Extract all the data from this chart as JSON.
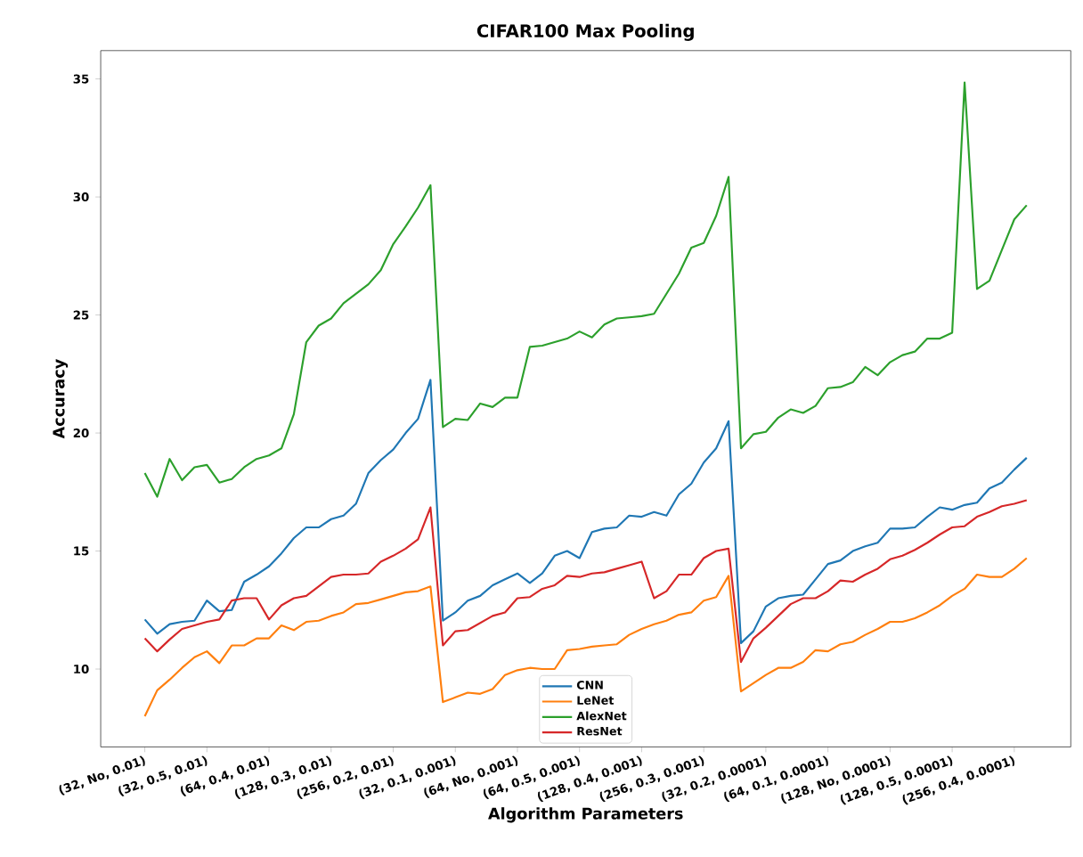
{
  "chart_data": {
    "type": "line",
    "title": "CIFAR100 Max Pooling",
    "xlabel": "Algorithm Parameters",
    "ylabel": "Accuracy",
    "categories": [
      "(32, No, 0.01)",
      null,
      null,
      null,
      null,
      "(32, 0.5, 0.01)",
      null,
      null,
      null,
      null,
      "(64, 0.4, 0.01)",
      null,
      null,
      null,
      null,
      "(128, 0.3, 0.01)",
      null,
      null,
      null,
      null,
      "(256, 0.2, 0.01)",
      null,
      null,
      null,
      null,
      "(32, 0.1, 0.001)",
      null,
      null,
      null,
      null,
      "(64, No, 0.001)",
      null,
      null,
      null,
      null,
      "(64, 0.5, 0.001)",
      null,
      null,
      null,
      null,
      "(128, 0.4, 0.001)",
      null,
      null,
      null,
      null,
      "(256, 0.3, 0.001)",
      null,
      null,
      null,
      null,
      "(32, 0.2, 0.0001)",
      null,
      null,
      null,
      null,
      "(64, 0.1, 0.0001)",
      null,
      null,
      null,
      null,
      "(128, No, 0.0001)",
      null,
      null,
      null,
      null,
      "(128, 0.5, 0.0001)",
      null,
      null,
      null,
      null,
      "(256, 0.4, 0.0001)",
      null
    ],
    "series": [
      {
        "name": "CNN",
        "color": "#1f77b4",
        "values": [
          12.1,
          11.5,
          11.9,
          12.0,
          12.05,
          12.9,
          12.45,
          12.5,
          13.7,
          14.0,
          14.35,
          14.9,
          15.55,
          16.0,
          16.0,
          16.35,
          16.5,
          17.0,
          18.3,
          18.85,
          19.3,
          20.0,
          20.6,
          22.25,
          12.05,
          12.4,
          12.9,
          13.1,
          13.55,
          13.8,
          14.05,
          13.65,
          14.05,
          14.8,
          15.0,
          14.7,
          15.8,
          15.95,
          16.0,
          16.5,
          16.45,
          16.65,
          16.5,
          17.4,
          17.85,
          18.75,
          19.35,
          20.5,
          11.1,
          11.6,
          12.65,
          13.0,
          13.1,
          13.15,
          13.8,
          14.45,
          14.6,
          15.0,
          15.2,
          15.35,
          15.95,
          15.95,
          16.0,
          16.45,
          16.85,
          16.75,
          16.95,
          17.05,
          17.65,
          17.9,
          18.45,
          18.95
        ]
      },
      {
        "name": "LeNet",
        "color": "#ff7f0e",
        "values": [
          8.0,
          9.1,
          9.55,
          10.05,
          10.5,
          10.75,
          10.25,
          11.0,
          11.0,
          11.3,
          11.3,
          11.85,
          11.65,
          12.0,
          12.05,
          12.25,
          12.4,
          12.75,
          12.8,
          12.95,
          13.1,
          13.25,
          13.3,
          13.5,
          8.6,
          8.8,
          9.0,
          8.95,
          9.15,
          9.75,
          9.95,
          10.05,
          10.0,
          10.0,
          10.8,
          10.85,
          10.95,
          11.0,
          11.05,
          11.45,
          11.7,
          11.9,
          12.05,
          12.3,
          12.4,
          12.9,
          13.05,
          13.95,
          9.05,
          9.4,
          9.75,
          10.05,
          10.05,
          10.3,
          10.8,
          10.75,
          11.05,
          11.15,
          11.45,
          11.7,
          12.0,
          12.0,
          12.15,
          12.4,
          12.7,
          13.1,
          13.4,
          14.0,
          13.9,
          13.9,
          14.25,
          14.7
        ]
      },
      {
        "name": "AlexNet",
        "color": "#2ca02c",
        "values": [
          18.3,
          17.3,
          18.9,
          18.0,
          18.55,
          18.65,
          17.9,
          18.05,
          18.55,
          18.9,
          19.05,
          19.35,
          20.8,
          23.85,
          24.55,
          24.85,
          25.5,
          25.9,
          26.3,
          26.9,
          28.0,
          28.75,
          29.55,
          30.5,
          20.25,
          20.6,
          20.55,
          21.25,
          21.1,
          21.5,
          21.5,
          23.65,
          23.7,
          23.85,
          24.0,
          24.3,
          24.05,
          24.6,
          24.85,
          24.9,
          24.95,
          25.05,
          25.9,
          26.75,
          27.85,
          28.05,
          29.2,
          30.85,
          19.35,
          19.95,
          20.05,
          20.65,
          21.0,
          20.85,
          21.15,
          21.9,
          21.95,
          22.15,
          22.8,
          22.45,
          23.0,
          23.3,
          23.45,
          24.0,
          24.0,
          24.25,
          34.85,
          26.1,
          26.45,
          27.75,
          29.05,
          29.65
        ]
      },
      {
        "name": "ResNet",
        "color": "#d62728",
        "values": [
          11.3,
          10.75,
          11.25,
          11.7,
          11.85,
          12.0,
          12.1,
          12.9,
          13.0,
          13.0,
          12.1,
          12.7,
          13.0,
          13.1,
          13.5,
          13.9,
          14.0,
          14.0,
          14.05,
          14.55,
          14.8,
          15.1,
          15.5,
          16.85,
          11.0,
          11.6,
          11.65,
          11.95,
          12.25,
          12.4,
          13.0,
          13.05,
          13.4,
          13.55,
          13.95,
          13.9,
          14.05,
          14.1,
          14.25,
          14.4,
          14.55,
          13.0,
          13.3,
          14.0,
          14.0,
          14.7,
          15.0,
          15.1,
          10.3,
          11.3,
          11.75,
          12.25,
          12.75,
          13.0,
          13.0,
          13.3,
          13.75,
          13.7,
          14.0,
          14.25,
          14.65,
          14.8,
          15.05,
          15.35,
          15.7,
          16.0,
          16.05,
          16.45,
          16.65,
          16.9,
          17.0,
          17.15
        ]
      }
    ],
    "ylim": [
      6.7,
      36.2
    ],
    "yticks": [
      10,
      15,
      20,
      25,
      30,
      35
    ],
    "legend": "bottom"
  }
}
